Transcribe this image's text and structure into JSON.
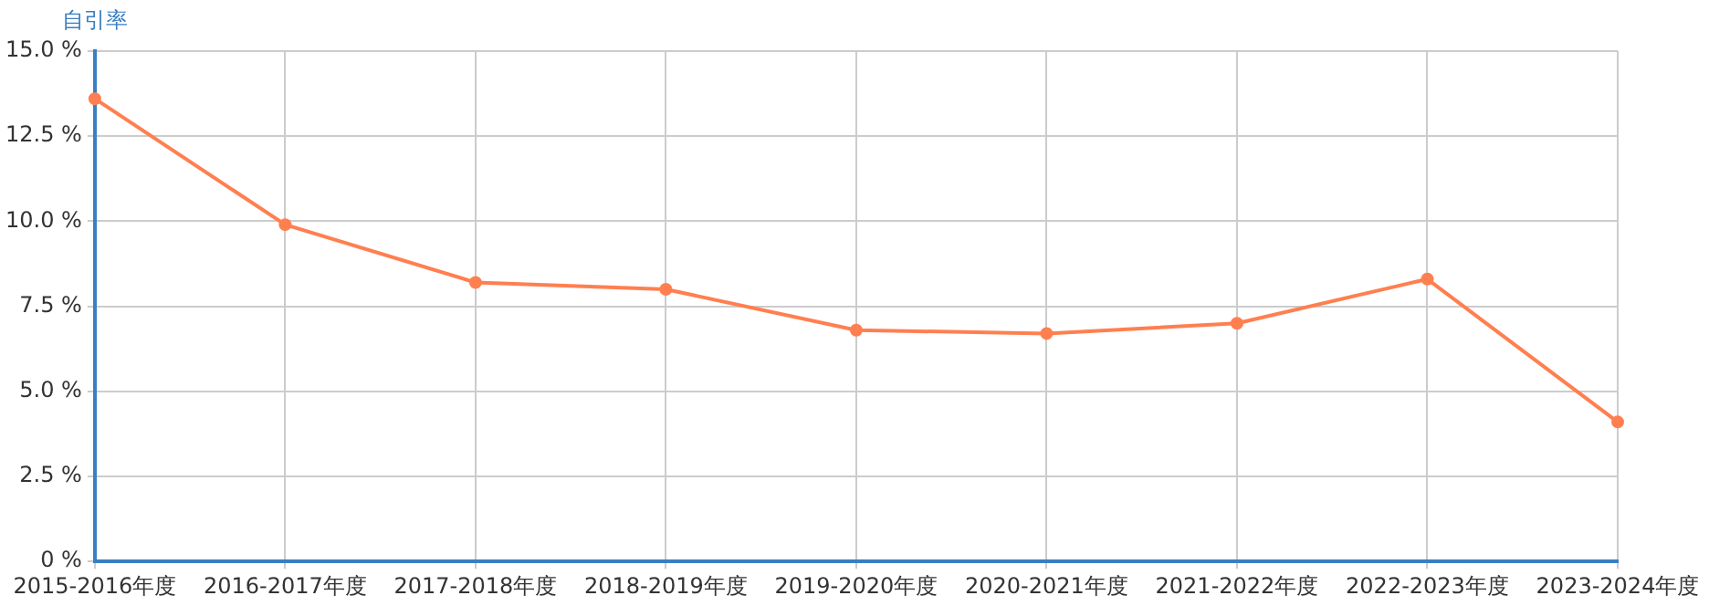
{
  "chart_data": {
    "type": "line",
    "ylabel": "自引率",
    "categories": [
      "2015-2016年度",
      "2016-2017年度",
      "2017-2018年度",
      "2018-2019年度",
      "2019-2020年度",
      "2020-2021年度",
      "2021-2022年度",
      "2022-2023年度",
      "2023-2024年度"
    ],
    "series": [
      {
        "color": "#ff7f50",
        "values": [
          13.6,
          9.9,
          8.2,
          8.0,
          6.8,
          6.7,
          7.0,
          8.3,
          4.1
        ]
      }
    ],
    "ylim": [
      0,
      15
    ],
    "yticks": [
      {
        "value": 0,
        "label": "0 %"
      },
      {
        "value": 2.5,
        "label": "2.5 %"
      },
      {
        "value": 5,
        "label": "5.0 %"
      },
      {
        "value": 7.5,
        "label": "7.5 %"
      },
      {
        "value": 10,
        "label": "10.0 %"
      },
      {
        "value": 12.5,
        "label": "12.5 %"
      },
      {
        "value": 15,
        "label": "15.0 %"
      }
    ],
    "grid": true,
    "marker": "circle",
    "line_style": "solid",
    "legend": false
  }
}
